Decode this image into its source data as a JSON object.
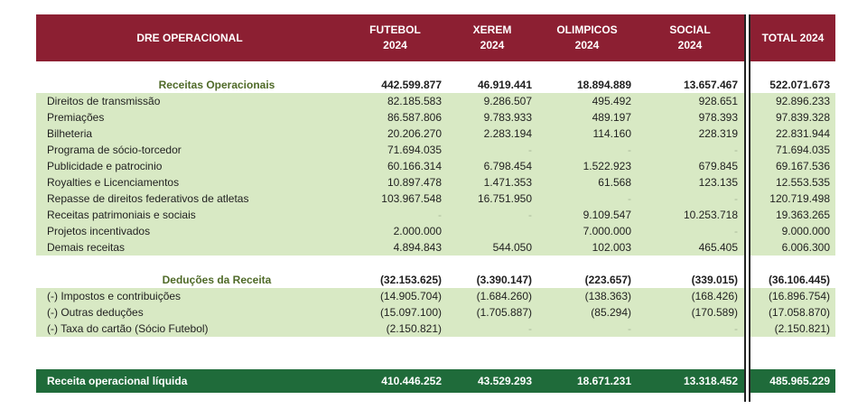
{
  "header": {
    "title": "DRE OPERACIONAL",
    "cols": [
      {
        "name": "FUTEBOL",
        "year": "2024"
      },
      {
        "name": "XEREM",
        "year": "2024"
      },
      {
        "name": "OLIMPICOS",
        "year": "2024"
      },
      {
        "name": "SOCIAL",
        "year": "2024"
      }
    ],
    "total": "TOTAL 2024"
  },
  "receitas": {
    "title": "Receitas Operacionais",
    "values": [
      "442.599.877",
      "46.919.441",
      "18.894.889",
      "13.657.467",
      "522.071.673"
    ],
    "rows": [
      {
        "label": "Direitos de transmissão",
        "values": [
          "82.185.583",
          "9.286.507",
          "495.492",
          "928.651",
          "92.896.233"
        ]
      },
      {
        "label": "Premiações",
        "values": [
          "86.587.806",
          "9.783.933",
          "489.197",
          "978.393",
          "97.839.328"
        ]
      },
      {
        "label": "Bilheteria",
        "values": [
          "20.206.270",
          "2.283.194",
          "114.160",
          "228.319",
          "22.831.944"
        ]
      },
      {
        "label": "Programa de sócio-torcedor",
        "values": [
          "71.694.035",
          "-",
          "-",
          "-",
          "71.694.035"
        ]
      },
      {
        "label": "Publicidade e patrocinio",
        "values": [
          "60.166.314",
          "6.798.454",
          "1.522.923",
          "679.845",
          "69.167.536"
        ]
      },
      {
        "label": "Royalties e Licenciamentos",
        "values": [
          "10.897.478",
          "1.471.353",
          "61.568",
          "123.135",
          "12.553.535"
        ]
      },
      {
        "label": "Repasse de direitos federativos de atletas",
        "values": [
          "103.967.548",
          "16.751.950",
          "-",
          "-",
          "120.719.498"
        ]
      },
      {
        "label": "Receitas patrimoniais e sociais",
        "values": [
          "-",
          "-",
          "9.109.547",
          "10.253.718",
          "19.363.265"
        ]
      },
      {
        "label": "Projetos incentivados",
        "values": [
          "2.000.000",
          "",
          "7.000.000",
          "-",
          "9.000.000"
        ]
      },
      {
        "label": "Demais receitas",
        "values": [
          "4.894.843",
          "544.050",
          "102.003",
          "465.405",
          "6.006.300"
        ]
      }
    ]
  },
  "deducoes": {
    "title": "Deduções da  Receita",
    "values": [
      "(32.153.625)",
      "(3.390.147)",
      "(223.657)",
      "(339.015)",
      "(36.106.445)"
    ],
    "rows": [
      {
        "label": "(-) Impostos e contribuições",
        "values": [
          "(14.905.704)",
          "(1.684.260)",
          "(138.363)",
          "(168.426)",
          "(16.896.754)"
        ]
      },
      {
        "label": "(-) Outras deduções",
        "values": [
          "(15.097.100)",
          "(1.705.887)",
          "(85.294)",
          "(170.589)",
          "(17.058.870)"
        ]
      },
      {
        "label": "(-) Taxa do cartão (Sócio Futebol)",
        "values": [
          "(2.150.821)",
          "-",
          "-",
          "-",
          "(2.150.821)"
        ]
      }
    ]
  },
  "net": {
    "label": "Receita operacional líquida",
    "values": [
      "410.446.252",
      "43.529.293",
      "18.671.231",
      "13.318.452",
      "485.965.229"
    ]
  },
  "colors": {
    "header_bg": "#8c1f32",
    "row_green": "#d8e9c4",
    "net_bg": "#1f6b3a",
    "section_title": "#4f6a28"
  }
}
